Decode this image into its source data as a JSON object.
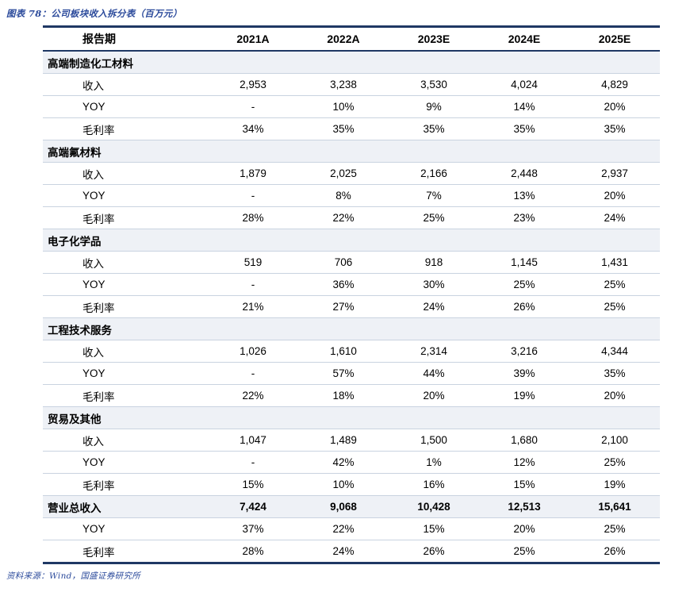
{
  "title": "图表 78：公司板块收入拆分表（百万元）",
  "source": "资料来源：Wind，国盛证券研究所",
  "colors": {
    "accent_line": "#1f3864",
    "title_text": "#2b4a9b",
    "section_row_bg": "#eef1f6",
    "row_divider": "#c9d3e0"
  },
  "table": {
    "header": [
      "报告期",
      "2021A",
      "2022A",
      "2023E",
      "2024E",
      "2025E"
    ],
    "sections": [
      {
        "name": "高端制造化工材料",
        "total": false,
        "values": [
          "",
          "",
          "",
          "",
          ""
        ],
        "rows": [
          {
            "label": "收入",
            "values": [
              "2,953",
              "3,238",
              "3,530",
              "4,024",
              "4,829"
            ]
          },
          {
            "label": "YOY",
            "values": [
              "-",
              "10%",
              "9%",
              "14%",
              "20%"
            ]
          },
          {
            "label": "毛利率",
            "values": [
              "34%",
              "35%",
              "35%",
              "35%",
              "35%"
            ]
          }
        ]
      },
      {
        "name": "高端氟材料",
        "total": false,
        "values": [
          "",
          "",
          "",
          "",
          ""
        ],
        "rows": [
          {
            "label": "收入",
            "values": [
              "1,879",
              "2,025",
              "2,166",
              "2,448",
              "2,937"
            ]
          },
          {
            "label": "YOY",
            "values": [
              "-",
              "8%",
              "7%",
              "13%",
              "20%"
            ]
          },
          {
            "label": "毛利率",
            "values": [
              "28%",
              "22%",
              "25%",
              "23%",
              "24%"
            ]
          }
        ]
      },
      {
        "name": "电子化学品",
        "total": false,
        "values": [
          "",
          "",
          "",
          "",
          ""
        ],
        "rows": [
          {
            "label": "收入",
            "values": [
              "519",
              "706",
              "918",
              "1,145",
              "1,431"
            ]
          },
          {
            "label": "YOY",
            "values": [
              "-",
              "36%",
              "30%",
              "25%",
              "25%"
            ]
          },
          {
            "label": "毛利率",
            "values": [
              "21%",
              "27%",
              "24%",
              "26%",
              "25%"
            ]
          }
        ]
      },
      {
        "name": "工程技术服务",
        "total": false,
        "values": [
          "",
          "",
          "",
          "",
          ""
        ],
        "rows": [
          {
            "label": "收入",
            "values": [
              "1,026",
              "1,610",
              "2,314",
              "3,216",
              "4,344"
            ]
          },
          {
            "label": "YOY",
            "values": [
              "-",
              "57%",
              "44%",
              "39%",
              "35%"
            ]
          },
          {
            "label": "毛利率",
            "values": [
              "22%",
              "18%",
              "20%",
              "19%",
              "20%"
            ]
          }
        ]
      },
      {
        "name": "贸易及其他",
        "total": false,
        "values": [
          "",
          "",
          "",
          "",
          ""
        ],
        "rows": [
          {
            "label": "收入",
            "values": [
              "1,047",
              "1,489",
              "1,500",
              "1,680",
              "2,100"
            ]
          },
          {
            "label": "YOY",
            "values": [
              "-",
              "42%",
              "1%",
              "12%",
              "25%"
            ]
          },
          {
            "label": "毛利率",
            "values": [
              "15%",
              "10%",
              "16%",
              "15%",
              "19%"
            ]
          }
        ]
      },
      {
        "name": "营业总收入",
        "total": true,
        "values": [
          "7,424",
          "9,068",
          "10,428",
          "12,513",
          "15,641"
        ],
        "rows": [
          {
            "label": "YOY",
            "values": [
              "37%",
              "22%",
              "15%",
              "20%",
              "25%"
            ]
          },
          {
            "label": "毛利率",
            "values": [
              "28%",
              "24%",
              "26%",
              "25%",
              "26%"
            ]
          }
        ]
      }
    ]
  }
}
